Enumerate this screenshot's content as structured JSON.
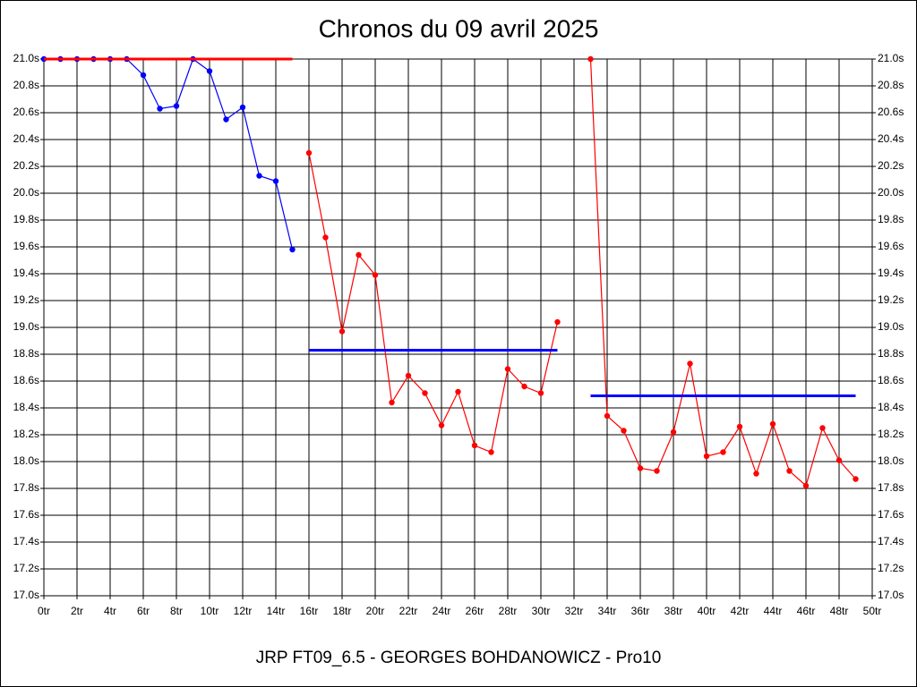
{
  "chart_data": {
    "type": "line",
    "title": "Chronos du 09 avril 2025",
    "footer": "JRP FT09_6.5 - GEORGES BOHDANOWICZ - Pro10",
    "grid": true,
    "xlim": [
      0,
      50
    ],
    "ylim": [
      17.0,
      21.0
    ],
    "xticks": [
      {
        "value": 0,
        "label": "0tr"
      },
      {
        "value": 2,
        "label": "2tr"
      },
      {
        "value": 4,
        "label": "4tr"
      },
      {
        "value": 6,
        "label": "6tr"
      },
      {
        "value": 8,
        "label": "8tr"
      },
      {
        "value": 10,
        "label": "10tr"
      },
      {
        "value": 12,
        "label": "12tr"
      },
      {
        "value": 14,
        "label": "14tr"
      },
      {
        "value": 16,
        "label": "16tr"
      },
      {
        "value": 18,
        "label": "18tr"
      },
      {
        "value": 20,
        "label": "20tr"
      },
      {
        "value": 22,
        "label": "22tr"
      },
      {
        "value": 24,
        "label": "24tr"
      },
      {
        "value": 26,
        "label": "26tr"
      },
      {
        "value": 28,
        "label": "28tr"
      },
      {
        "value": 30,
        "label": "30tr"
      },
      {
        "value": 32,
        "label": "32tr"
      },
      {
        "value": 34,
        "label": "34tr"
      },
      {
        "value": 36,
        "label": "36tr"
      },
      {
        "value": 38,
        "label": "38tr"
      },
      {
        "value": 40,
        "label": "40tr"
      },
      {
        "value": 42,
        "label": "42tr"
      },
      {
        "value": 44,
        "label": "44tr"
      },
      {
        "value": 46,
        "label": "46tr"
      },
      {
        "value": 48,
        "label": "48tr"
      },
      {
        "value": 50,
        "label": "50tr"
      }
    ],
    "yticks": [
      {
        "value": 17.0,
        "label": "17.0s"
      },
      {
        "value": 17.2,
        "label": "17.2s"
      },
      {
        "value": 17.4,
        "label": "17.4s"
      },
      {
        "value": 17.6,
        "label": "17.6s"
      },
      {
        "value": 17.8,
        "label": "17.8s"
      },
      {
        "value": 18.0,
        "label": "18.0s"
      },
      {
        "value": 18.2,
        "label": "18.2s"
      },
      {
        "value": 18.4,
        "label": "18.4s"
      },
      {
        "value": 18.6,
        "label": "18.6s"
      },
      {
        "value": 18.8,
        "label": "18.8s"
      },
      {
        "value": 19.0,
        "label": "19.0s"
      },
      {
        "value": 19.2,
        "label": "19.2s"
      },
      {
        "value": 19.4,
        "label": "19.4s"
      },
      {
        "value": 19.6,
        "label": "19.6s"
      },
      {
        "value": 19.8,
        "label": "19.8s"
      },
      {
        "value": 20.0,
        "label": "20.0s"
      },
      {
        "value": 20.2,
        "label": "20.2s"
      },
      {
        "value": 20.4,
        "label": "20.4s"
      },
      {
        "value": 20.6,
        "label": "20.6s"
      },
      {
        "value": 20.8,
        "label": "20.8s"
      },
      {
        "value": 21.0,
        "label": "21.0s"
      }
    ],
    "series": [
      {
        "color": "#0000ff",
        "markers": true,
        "x": [
          0,
          1,
          2,
          3,
          4,
          5,
          6,
          7,
          8,
          9,
          10,
          11,
          12,
          13,
          14,
          15
        ],
        "values": [
          21.0,
          21.0,
          21.0,
          21.0,
          21.0,
          21.0,
          20.88,
          20.63,
          20.65,
          21.0,
          20.91,
          20.55,
          20.64,
          20.13,
          20.09,
          19.58
        ]
      },
      {
        "color": "#ff0000",
        "markers": true,
        "x": [
          16,
          17,
          18,
          19,
          20,
          21,
          22,
          23,
          24,
          25,
          26,
          27,
          28,
          29,
          30,
          31
        ],
        "values": [
          20.3,
          19.67,
          18.97,
          19.54,
          19.39,
          18.44,
          18.64,
          18.51,
          18.27,
          18.52,
          18.12,
          18.07,
          18.69,
          18.56,
          18.51,
          19.04
        ]
      },
      {
        "color": "#ff0000",
        "markers": true,
        "x": [
          33,
          34,
          35,
          36,
          37,
          38,
          39,
          40,
          41,
          42,
          43,
          44,
          45,
          46,
          47,
          48,
          49
        ],
        "values": [
          21.0,
          18.34,
          18.23,
          17.95,
          17.93,
          18.22,
          18.73,
          18.04,
          18.07,
          18.26,
          17.91,
          18.28,
          17.93,
          17.82,
          18.25,
          18.01,
          17.87
        ]
      },
      {
        "color": "#ff0000",
        "markers": false,
        "x": [
          0,
          15
        ],
        "values": [
          21.0,
          21.0
        ]
      },
      {
        "color": "#0000ff",
        "markers": false,
        "x": [
          16,
          31
        ],
        "values": [
          18.83,
          18.83
        ]
      },
      {
        "color": "#0000ff",
        "markers": false,
        "x": [
          33,
          49
        ],
        "values": [
          18.49,
          18.49
        ]
      }
    ]
  }
}
